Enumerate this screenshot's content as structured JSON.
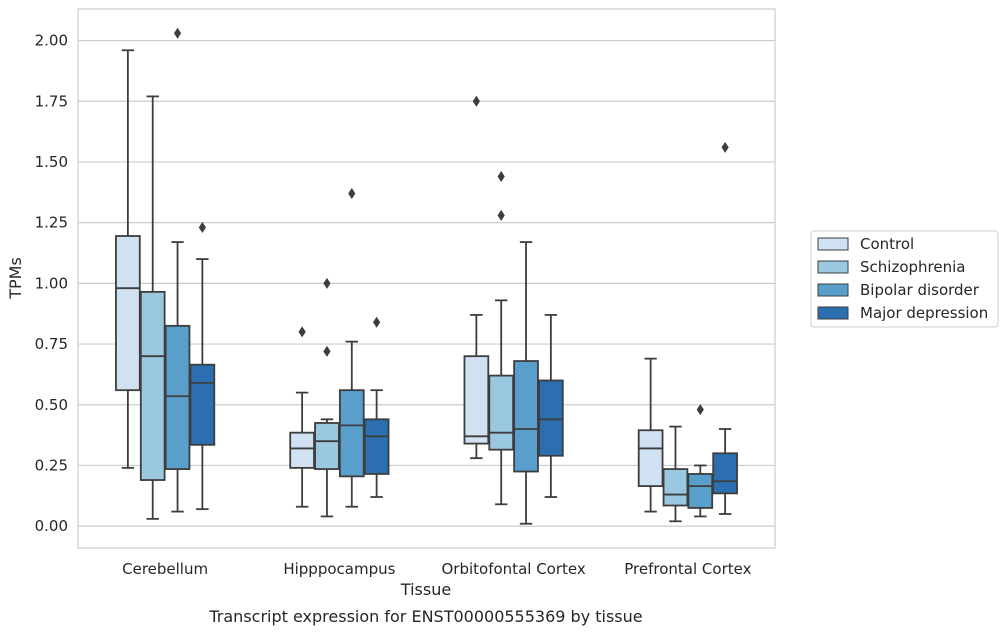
{
  "chart_data": {
    "type": "box",
    "caption": "Transcript expression for ENST00000555369 by tissue",
    "xlabel": "Tissue",
    "ylabel": "TPMs",
    "ylim": [
      -0.09,
      2.13
    ],
    "yticks": [
      "0.00",
      "0.25",
      "0.50",
      "0.75",
      "1.00",
      "1.25",
      "1.50",
      "1.75",
      "2.00"
    ],
    "categories": [
      "Cerebellum",
      "Hipppocampus",
      "Orbitofontal Cortex",
      "Prefrontal Cortex"
    ],
    "grid": "horizontal",
    "legend_position": "right",
    "series": [
      {
        "name": "Control",
        "color": "#d0e1f2",
        "boxes": [
          {
            "whisker_low": 0.24,
            "q1": 0.56,
            "median": 0.98,
            "q3": 1.195,
            "whisker_high": 1.96,
            "outliers": []
          },
          {
            "whisker_low": 0.08,
            "q1": 0.24,
            "median": 0.32,
            "q3": 0.385,
            "whisker_high": 0.55,
            "outliers": [
              0.8
            ]
          },
          {
            "whisker_low": 0.28,
            "q1": 0.34,
            "median": 0.37,
            "q3": 0.7,
            "whisker_high": 0.87,
            "outliers": [
              1.75
            ]
          },
          {
            "whisker_low": 0.06,
            "q1": 0.165,
            "median": 0.32,
            "q3": 0.395,
            "whisker_high": 0.69,
            "outliers": []
          }
        ]
      },
      {
        "name": "Schizophrenia",
        "color": "#9ac8e0",
        "boxes": [
          {
            "whisker_low": 0.03,
            "q1": 0.19,
            "median": 0.7,
            "q3": 0.965,
            "whisker_high": 1.77,
            "outliers": []
          },
          {
            "whisker_low": 0.04,
            "q1": 0.235,
            "median": 0.35,
            "q3": 0.425,
            "whisker_high": 0.44,
            "outliers": [
              0.72,
              1.0
            ]
          },
          {
            "whisker_low": 0.09,
            "q1": 0.315,
            "median": 0.385,
            "q3": 0.62,
            "whisker_high": 0.93,
            "outliers": [
              1.28,
              1.44
            ]
          },
          {
            "whisker_low": 0.02,
            "q1": 0.085,
            "median": 0.13,
            "q3": 0.235,
            "whisker_high": 0.41,
            "outliers": []
          }
        ]
      },
      {
        "name": "Bipolar disorder",
        "color": "#5a9fcc",
        "boxes": [
          {
            "whisker_low": 0.06,
            "q1": 0.235,
            "median": 0.535,
            "q3": 0.825,
            "whisker_high": 1.17,
            "outliers": [
              2.03
            ]
          },
          {
            "whisker_low": 0.08,
            "q1": 0.205,
            "median": 0.415,
            "q3": 0.56,
            "whisker_high": 0.76,
            "outliers": [
              1.37
            ]
          },
          {
            "whisker_low": 0.01,
            "q1": 0.225,
            "median": 0.4,
            "q3": 0.68,
            "whisker_high": 1.17,
            "outliers": []
          },
          {
            "whisker_low": 0.04,
            "q1": 0.075,
            "median": 0.165,
            "q3": 0.215,
            "whisker_high": 0.25,
            "outliers": [
              0.48
            ]
          }
        ]
      },
      {
        "name": "Major depression",
        "color": "#2b6fb0",
        "boxes": [
          {
            "whisker_low": 0.07,
            "q1": 0.335,
            "median": 0.59,
            "q3": 0.665,
            "whisker_high": 1.1,
            "outliers": [
              1.23
            ]
          },
          {
            "whisker_low": 0.12,
            "q1": 0.215,
            "median": 0.37,
            "q3": 0.44,
            "whisker_high": 0.56,
            "outliers": [
              0.84
            ]
          },
          {
            "whisker_low": 0.12,
            "q1": 0.29,
            "median": 0.44,
            "q3": 0.6,
            "whisker_high": 0.87,
            "outliers": []
          },
          {
            "whisker_low": 0.05,
            "q1": 0.135,
            "median": 0.185,
            "q3": 0.3,
            "whisker_high": 0.4,
            "outliers": [
              1.56
            ]
          }
        ]
      }
    ]
  }
}
